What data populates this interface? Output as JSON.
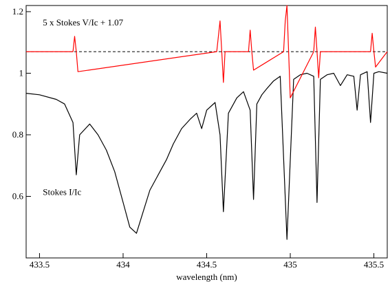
{
  "chart_data": {
    "type": "line",
    "title": "",
    "xlabel": "wavelength (nm)",
    "ylabel": "",
    "xlim": [
      433.42,
      435.58
    ],
    "ylim": [
      0.4,
      1.22
    ],
    "grid": false,
    "x_ticks": [
      433.5,
      434,
      434.5,
      435,
      435.5
    ],
    "x_tick_labels": [
      "433.5",
      "434",
      "434.5",
      "435",
      "435.5"
    ],
    "y_ticks": [
      0.6,
      0.8,
      1.0,
      1.2
    ],
    "y_tick_labels": [
      "0.6",
      "0.8",
      "1",
      "1.2"
    ],
    "annotations": [
      {
        "text": "5 x Stokes V/Ic + 1.07",
        "x": 433.52,
        "y": 1.155
      },
      {
        "text": "Stokes I/Ic",
        "x": 433.52,
        "y": 0.605
      }
    ],
    "reference_line": {
      "y": 1.07,
      "style": "dashed",
      "color": "#000000"
    },
    "series": [
      {
        "color": "#000000",
        "x": [
          433.42,
          433.5,
          433.6,
          433.65,
          433.7,
          433.72,
          433.74,
          433.8,
          433.85,
          433.9,
          433.95,
          434.0,
          434.04,
          434.08,
          434.12,
          434.16,
          434.2,
          434.23,
          434.26,
          434.3,
          434.35,
          434.4,
          434.44,
          434.47,
          434.5,
          434.55,
          434.58,
          434.6,
          434.63,
          434.68,
          434.72,
          434.76,
          434.78,
          434.8,
          434.83,
          434.86,
          434.9,
          434.94,
          434.98,
          435.02,
          435.06,
          435.1,
          435.14,
          435.16,
          435.18,
          435.22,
          435.26,
          435.3,
          435.34,
          435.38,
          435.4,
          435.42,
          435.46,
          435.48,
          435.5,
          435.53,
          435.58
        ],
        "y": [
          0.935,
          0.93,
          0.915,
          0.9,
          0.84,
          0.67,
          0.8,
          0.835,
          0.8,
          0.75,
          0.68,
          0.58,
          0.5,
          0.48,
          0.55,
          0.62,
          0.66,
          0.69,
          0.72,
          0.77,
          0.82,
          0.85,
          0.87,
          0.82,
          0.88,
          0.905,
          0.8,
          0.55,
          0.87,
          0.92,
          0.94,
          0.88,
          0.59,
          0.9,
          0.93,
          0.95,
          0.975,
          0.99,
          0.46,
          0.98,
          0.995,
          1.0,
          0.99,
          0.58,
          0.98,
          0.995,
          1.0,
          0.96,
          0.995,
          0.99,
          0.88,
          0.995,
          1.005,
          0.84,
          1.0,
          1.005,
          1.0
        ]
      },
      {
        "color": "#ff0000",
        "x": [
          433.42,
          433.7,
          433.71,
          433.72,
          433.73,
          434.56,
          434.57,
          434.58,
          434.59,
          434.6,
          434.61,
          434.75,
          434.76,
          434.77,
          434.78,
          434.96,
          434.97,
          434.98,
          434.99,
          435.0,
          435.14,
          435.15,
          435.16,
          435.17,
          435.18,
          435.48,
          435.49,
          435.5,
          435.51,
          435.58
        ],
        "y": [
          1.07,
          1.07,
          1.12,
          1.07,
          1.005,
          1.07,
          1.12,
          1.17,
          1.07,
          0.97,
          1.07,
          1.07,
          1.14,
          1.07,
          1.01,
          1.07,
          1.17,
          1.22,
          1.07,
          0.92,
          1.07,
          1.15,
          1.07,
          0.985,
          1.07,
          1.07,
          1.13,
          1.07,
          1.02,
          1.07
        ]
      }
    ]
  }
}
